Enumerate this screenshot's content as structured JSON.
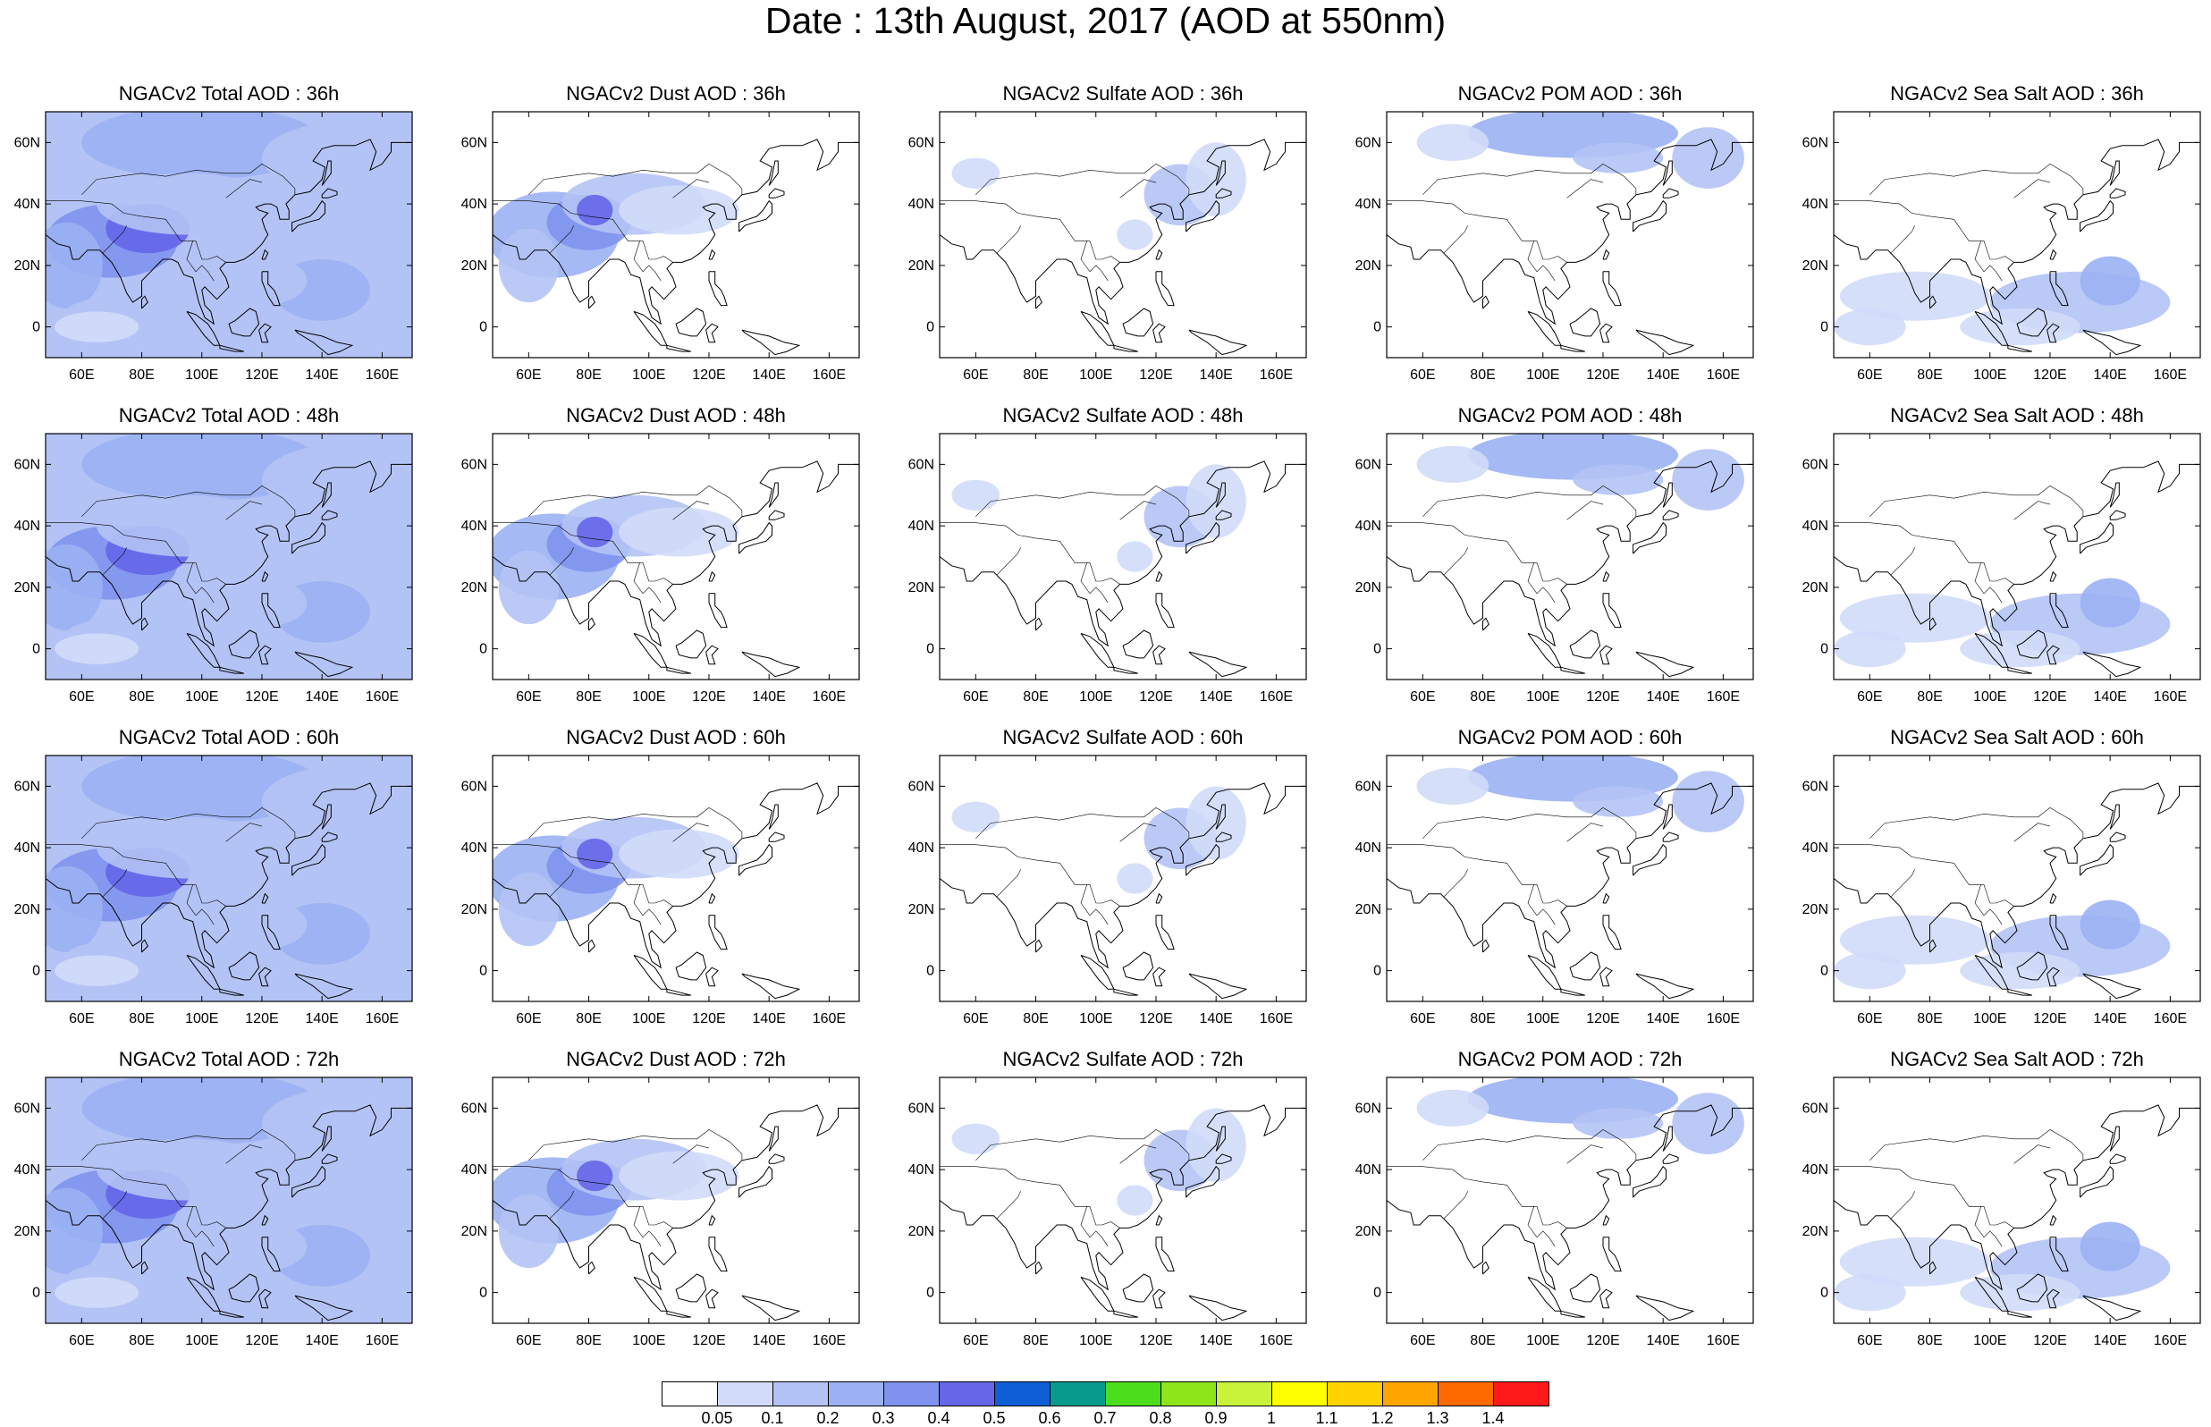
{
  "title": "Date : 13th August, 2017 (AOD at 550nm)",
  "lat_ticks": [
    "60N",
    "40N",
    "20N",
    "0"
  ],
  "lon_ticks": [
    "60E",
    "80E",
    "100E",
    "120E",
    "140E",
    "160E"
  ],
  "panels": [
    {
      "title": "NGACv2 Total AOD : 36h",
      "species": "total"
    },
    {
      "title": "NGACv2 Dust AOD : 36h",
      "species": "dust"
    },
    {
      "title": "NGACv2 Sulfate AOD : 36h",
      "species": "sulfate"
    },
    {
      "title": "NGACv2 POM AOD : 36h",
      "species": "pom"
    },
    {
      "title": "NGACv2 Sea Salt AOD : 36h",
      "species": "seasalt"
    },
    {
      "title": "NGACv2 Total AOD : 48h",
      "species": "total"
    },
    {
      "title": "NGACv2 Dust AOD : 48h",
      "species": "dust"
    },
    {
      "title": "NGACv2 Sulfate AOD : 48h",
      "species": "sulfate"
    },
    {
      "title": "NGACv2 POM AOD : 48h",
      "species": "pom"
    },
    {
      "title": "NGACv2 Sea Salt AOD : 48h",
      "species": "seasalt"
    },
    {
      "title": "NGACv2 Total AOD : 60h",
      "species": "total"
    },
    {
      "title": "NGACv2 Dust AOD : 60h",
      "species": "dust"
    },
    {
      "title": "NGACv2 Sulfate AOD : 60h",
      "species": "sulfate"
    },
    {
      "title": "NGACv2 POM AOD : 60h",
      "species": "pom"
    },
    {
      "title": "NGACv2 Sea Salt AOD : 60h",
      "species": "seasalt"
    },
    {
      "title": "NGACv2 Total AOD : 72h",
      "species": "total"
    },
    {
      "title": "NGACv2 Dust AOD : 72h",
      "species": "dust"
    },
    {
      "title": "NGACv2 Sulfate AOD : 72h",
      "species": "sulfate"
    },
    {
      "title": "NGACv2 POM AOD : 72h",
      "species": "pom"
    },
    {
      "title": "NGACv2 Sea Salt  AOD : 72h",
      "species": "seasalt"
    }
  ],
  "colorbar": {
    "labels": [
      "0.05",
      "0.1",
      "0.2",
      "0.3",
      "0.4",
      "0.5",
      "0.6",
      "0.7",
      "0.8",
      "0.9",
      "1",
      "1.1",
      "1.2",
      "1.3",
      "1.4"
    ],
    "colors": [
      "#ffffff",
      "#d2dcfa",
      "#b4c3f5",
      "#9bb1f3",
      "#7f93ee",
      "#6566e8",
      "#0e5fd6",
      "#079a8d",
      "#4cdd1c",
      "#8ee51a",
      "#c9f23a",
      "#ffff00",
      "#ffd200",
      "#ffa500",
      "#ff6a00",
      "#ff1a1a"
    ]
  }
}
